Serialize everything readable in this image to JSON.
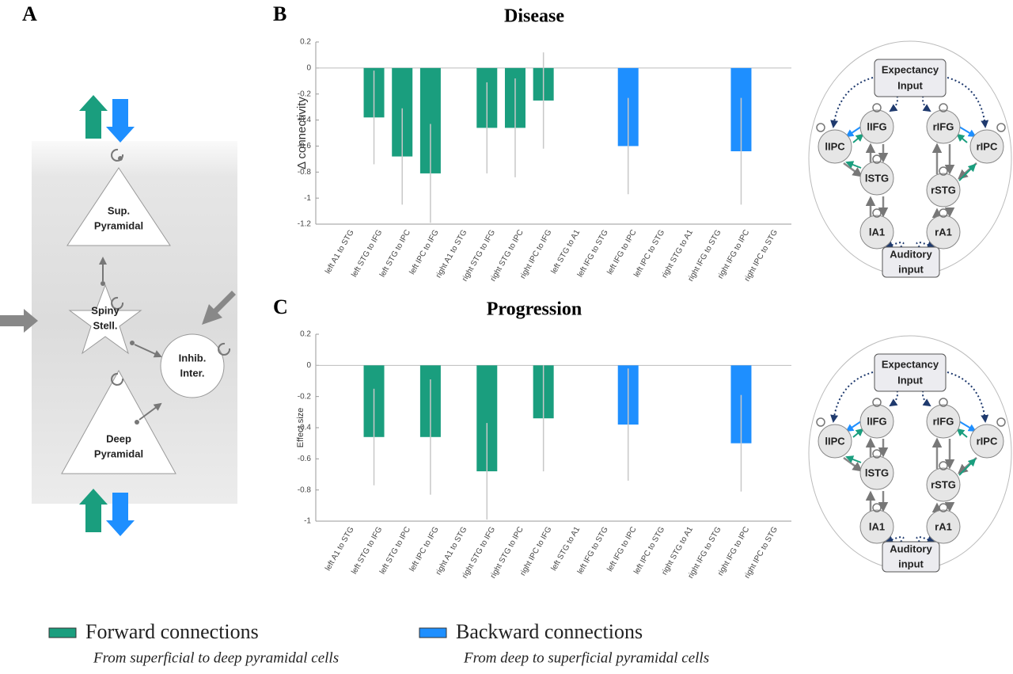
{
  "panels": {
    "a": "A",
    "b": "B",
    "c": "C"
  },
  "chart_data": [
    {
      "type": "bar",
      "title": "Disease",
      "ylabel": "Δ connectivity",
      "categories": [
        "left A1 to STG",
        "left STG to IFG",
        "left STG to IPC",
        "left IPC to IFG",
        "right A1 to STG",
        "right STG to IFG",
        "right STG to IPC",
        "right IPC to IFG",
        "left STG to A1",
        "left IFG to STG",
        "left IFG to IPC",
        "left IPC to STG",
        "right STG to A1",
        "right IFG to STG",
        "right IFG to IPC",
        "right IPC to STG"
      ],
      "values": [
        0,
        -0.38,
        -0.68,
        -0.81,
        0,
        -0.46,
        -0.46,
        -0.25,
        0,
        0,
        -0.6,
        0,
        0,
        0,
        -0.64,
        0
      ],
      "errors": [
        null,
        0.36,
        0.37,
        0.38,
        null,
        0.35,
        0.38,
        0.37,
        null,
        null,
        0.37,
        null,
        null,
        null,
        0.41,
        null
      ],
      "colors": [
        "#1a9e7e",
        "#1a9e7e",
        "#1a9e7e",
        "#1a9e7e",
        "#1a9e7e",
        "#1a9e7e",
        "#1a9e7e",
        "#1a9e7e",
        "#1e8fff",
        "#1e8fff",
        "#1e8fff",
        "#1e8fff",
        "#1e8fff",
        "#1e8fff",
        "#1e8fff",
        "#1e8fff"
      ],
      "ylim": [
        -1.2,
        0.2
      ],
      "yticks": [
        -1.2,
        -1,
        -0.8,
        -0.6,
        -0.4,
        -0.2,
        0,
        0.2
      ]
    },
    {
      "type": "bar",
      "title": "Progression",
      "ylabel": "Effect size",
      "categories": [
        "left A1 to STG",
        "left STG to IFG",
        "left STG to IPC",
        "left IPC to IFG",
        "right A1 to STG",
        "right STG to IFG",
        "right STG to IPC",
        "right IPC to IFG",
        "left STG to A1",
        "left IFG to STG",
        "left IFG to IPC",
        "left IPC to STG",
        "right STG to A1",
        "right IFG to STG",
        "right IFG to IPC",
        "right IPC to STG"
      ],
      "values": [
        0,
        -0.46,
        0,
        -0.46,
        0,
        -0.68,
        0,
        -0.34,
        0,
        0,
        -0.38,
        0,
        0,
        0,
        -0.5,
        0
      ],
      "errors": [
        null,
        0.31,
        null,
        0.37,
        null,
        0.31,
        null,
        0.34,
        null,
        null,
        0.36,
        null,
        null,
        null,
        0.31,
        null
      ],
      "colors": [
        "#1a9e7e",
        "#1a9e7e",
        "#1a9e7e",
        "#1a9e7e",
        "#1a9e7e",
        "#1a9e7e",
        "#1a9e7e",
        "#1a9e7e",
        "#1e8fff",
        "#1e8fff",
        "#1e8fff",
        "#1e8fff",
        "#1e8fff",
        "#1e8fff",
        "#1e8fff",
        "#1e8fff"
      ],
      "ylim": [
        -1,
        0.2
      ],
      "yticks": [
        -1,
        -0.8,
        -0.6,
        -0.4,
        -0.2,
        0,
        0.2
      ]
    }
  ],
  "cells": {
    "sup": [
      "Sup.",
      "Pyramidal"
    ],
    "spiny": [
      "Spiny",
      "Stell."
    ],
    "inhib": [
      "Inhib.",
      "Inter."
    ],
    "deep": [
      "Deep",
      "Pyramidal"
    ]
  },
  "network": {
    "expectancy": [
      "Expectancy",
      "Input"
    ],
    "auditory": [
      "Auditory",
      "input"
    ],
    "nodes": [
      "lIFG",
      "rIFG",
      "lIPC",
      "rIPC",
      "lSTG",
      "rSTG",
      "lA1",
      "rA1"
    ]
  },
  "legend": [
    {
      "name": "Forward connections",
      "description": "From superficial to deep pyramidal cells",
      "color": "#1a9e7e"
    },
    {
      "name": "Backward connections",
      "description": "From deep to superficial pyramidal cells",
      "color": "#1e8fff"
    }
  ]
}
